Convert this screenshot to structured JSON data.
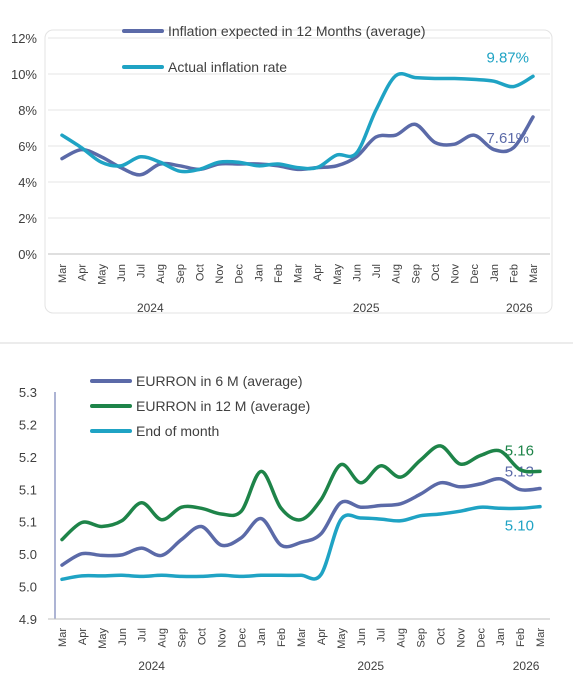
{
  "chart_data": [
    {
      "type": "line",
      "title": "",
      "xlabel": "",
      "ylabel": "",
      "ylim": [
        0,
        12
      ],
      "y_ticks": [
        "0%",
        "2%",
        "4%",
        "6%",
        "8%",
        "10%",
        "12%"
      ],
      "categories": [
        "Mar",
        "Apr",
        "May",
        "Jun",
        "Jul",
        "Aug",
        "Sep",
        "Oct",
        "Nov",
        "Dec",
        "Jan",
        "Feb",
        "Mar",
        "Apr",
        "May",
        "Jun",
        "Jul",
        "Aug",
        "Sep",
        "Oct",
        "Nov",
        "Dec",
        "Jan",
        "Feb",
        "Mar"
      ],
      "years": [
        {
          "label": "2024",
          "from": 0,
          "to": 9
        },
        {
          "label": "2025",
          "from": 10,
          "to": 21
        },
        {
          "label": "2026",
          "from": 22,
          "to": 24
        }
      ],
      "grid": "horizontal",
      "legend": "top-left",
      "series": [
        {
          "name": "Inflation expected in 12 Months (average)",
          "color": "#5b6aa8",
          "values": [
            5.3,
            5.8,
            5.4,
            4.8,
            4.4,
            5.0,
            4.9,
            4.7,
            5.0,
            5.0,
            5.0,
            4.9,
            4.7,
            4.8,
            4.9,
            5.4,
            6.5,
            6.6,
            7.2,
            6.2,
            6.1,
            6.6,
            5.8,
            5.9,
            7.61
          ],
          "end_label": "7.61%"
        },
        {
          "name": "Actual inflation rate",
          "color": "#1fa3c4",
          "values": [
            6.6,
            5.9,
            5.1,
            4.9,
            5.4,
            5.1,
            4.6,
            4.7,
            5.1,
            5.1,
            4.9,
            5.0,
            4.8,
            4.8,
            5.5,
            5.6,
            8.0,
            9.9,
            9.8,
            9.75,
            9.75,
            9.7,
            9.6,
            9.3,
            9.87
          ],
          "end_label": "9.87%"
        }
      ]
    },
    {
      "type": "line",
      "title": "",
      "xlabel": "",
      "ylabel": "",
      "ylim": [
        4.9,
        5.3
      ],
      "y_ticks": [
        "4.9",
        "5.0",
        "5.0",
        "5.1",
        "5.1",
        "5.2",
        "5.2",
        "5.3"
      ],
      "categories": [
        "Mar",
        "Apr",
        "May",
        "Jun",
        "Jul",
        "Aug",
        "Sep",
        "Oct",
        "Nov",
        "Dec",
        "Jan",
        "Feb",
        "Mar",
        "Apr",
        "May",
        "Jun",
        "Jul",
        "Aug",
        "Sep",
        "Oct",
        "Nov",
        "Dec",
        "Jan",
        "Feb",
        "Mar"
      ],
      "years": [
        {
          "label": "2024",
          "from": 0,
          "to": 9
        },
        {
          "label": "2025",
          "from": 10,
          "to": 21
        },
        {
          "label": "2026",
          "from": 22,
          "to": 24
        }
      ],
      "grid": "none",
      "legend": "top-left",
      "series": [
        {
          "name": "EURRON in 6 M (average)",
          "color": "#5b6aa8",
          "values": [
            4.995,
            5.015,
            5.012,
            5.013,
            5.025,
            5.012,
            5.04,
            5.063,
            5.03,
            5.043,
            5.077,
            5.03,
            5.035,
            5.05,
            5.105,
            5.097,
            5.1,
            5.103,
            5.12,
            5.14,
            5.133,
            5.138,
            5.147,
            5.128,
            5.13
          ],
          "end_label": "5.13"
        },
        {
          "name": "EURRON in 12 M (average)",
          "color": "#1e8449",
          "values": [
            5.04,
            5.07,
            5.063,
            5.073,
            5.105,
            5.075,
            5.097,
            5.095,
            5.085,
            5.09,
            5.16,
            5.095,
            5.075,
            5.11,
            5.172,
            5.14,
            5.17,
            5.15,
            5.18,
            5.205,
            5.173,
            5.188,
            5.196,
            5.163,
            5.16
          ],
          "end_label": "5.16"
        },
        {
          "name": "End of month",
          "color": "#1fa3c4",
          "values": [
            4.97,
            4.976,
            4.976,
            4.977,
            4.975,
            4.977,
            4.975,
            4.975,
            4.977,
            4.975,
            4.977,
            4.977,
            4.977,
            4.978,
            5.075,
            5.078,
            5.076,
            5.073,
            5.082,
            5.085,
            5.09,
            5.097,
            5.095,
            5.095,
            5.098
          ],
          "end_label": "5.10"
        }
      ]
    }
  ]
}
